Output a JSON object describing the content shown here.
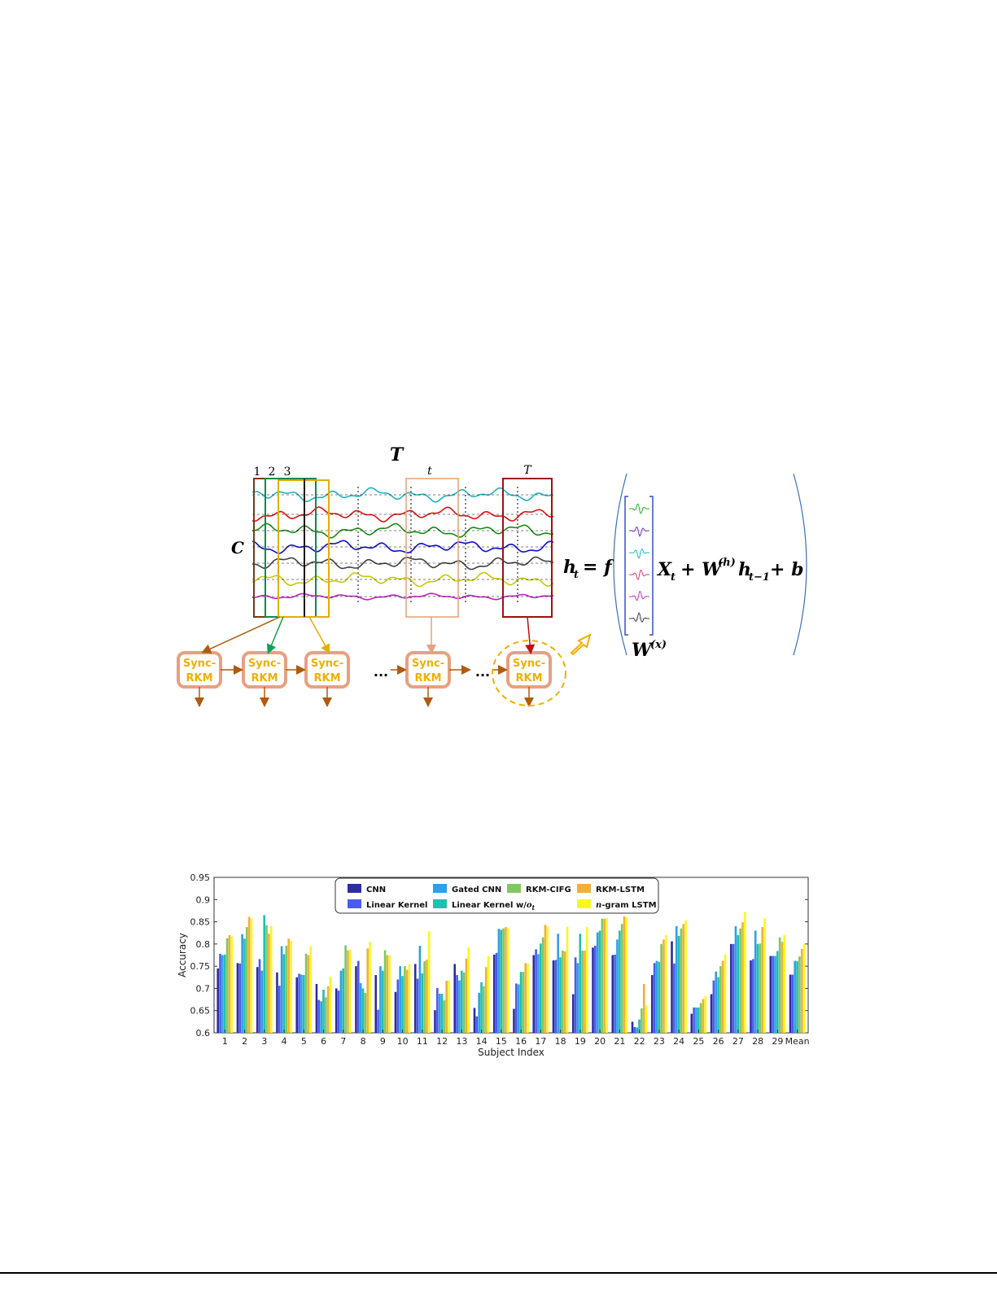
{
  "figure1": {
    "T_big": "T",
    "C_label": "C",
    "window_numbers": [
      "1",
      "2",
      "3"
    ],
    "t_label": "t",
    "T_label": "T",
    "sync_line1": "Sync-",
    "sync_line2": "RKM",
    "ellipsis": "...",
    "eq_ht": "h",
    "eq_ht_sub": "t",
    "eq_eq_f": "= f",
    "eq_xt": "X",
    "eq_xt_sub": "t",
    "eq_plus_w": "+ W",
    "eq_w_sup": "(h)",
    "eq_h": "h",
    "eq_h_sub": "t−1",
    "eq_plus_b": "+ b",
    "wx": "W",
    "wx_sup": "(x)",
    "signal_colors": [
      "#20b2c0",
      "#e01010",
      "#1a8a1a",
      "#1010c8",
      "#404040",
      "#c8c800",
      "#c020c0"
    ],
    "window_colors": [
      "#7a3a10",
      "#108a4a",
      "#e0b000"
    ],
    "sync_color": "#e8a080",
    "sync_text_color": "#f0b000"
  },
  "chart_data": {
    "type": "bar",
    "ylabel": "Accuracy",
    "xlabel": "Subject Index",
    "ylim": [
      0.6,
      0.95
    ],
    "yticks": [
      "0.6",
      "0.65",
      "0.7",
      "0.75",
      "0.8",
      "0.85",
      "0.9",
      "0.95"
    ],
    "categories": [
      "1",
      "2",
      "3",
      "4",
      "5",
      "6",
      "7",
      "8",
      "9",
      "10",
      "11",
      "12",
      "13",
      "14",
      "15",
      "16",
      "17",
      "18",
      "19",
      "20",
      "21",
      "22",
      "23",
      "24",
      "25",
      "26",
      "27",
      "28",
      "29",
      "Mean"
    ],
    "legend": {
      "placement": "top-center"
    },
    "series": [
      {
        "name": "CNN",
        "color": "#2e2e9e",
        "values": [
          0.745,
          0.757,
          0.748,
          0.736,
          0.725,
          0.71,
          0.7,
          0.75,
          0.73,
          0.692,
          0.755,
          0.651,
          0.755,
          0.656,
          0.776,
          0.654,
          0.775,
          0.763,
          0.687,
          0.792,
          0.775,
          0.625,
          0.73,
          0.806,
          0.643,
          0.687,
          0.8,
          0.763,
          0.773,
          0.731
        ]
      },
      {
        "name": "Linear Kernel",
        "color": "#4a5cf0",
        "values": [
          0.778,
          0.756,
          0.766,
          0.706,
          0.733,
          0.674,
          0.695,
          0.762,
          0.652,
          0.72,
          0.722,
          0.701,
          0.73,
          0.637,
          0.78,
          0.711,
          0.788,
          0.764,
          0.77,
          0.796,
          0.776,
          0.613,
          0.757,
          0.756,
          0.657,
          0.718,
          0.8,
          0.766,
          0.773,
          0.731
        ]
      },
      {
        "name": "Gated CNN",
        "color": "#2ea0e8",
        "values": [
          0.775,
          0.822,
          0.74,
          0.795,
          0.731,
          0.671,
          0.74,
          0.712,
          0.75,
          0.75,
          0.796,
          0.688,
          0.718,
          0.69,
          0.834,
          0.709,
          0.777,
          0.823,
          0.757,
          0.826,
          0.81,
          0.612,
          0.762,
          0.84,
          0.657,
          0.738,
          0.84,
          0.83,
          0.773,
          0.762
        ]
      },
      {
        "name": "Linear Kernel w/o_t",
        "color": "#20c0b0",
        "values": [
          0.776,
          0.812,
          0.865,
          0.777,
          0.73,
          0.697,
          0.745,
          0.7,
          0.74,
          0.728,
          0.734,
          0.688,
          0.74,
          0.714,
          0.832,
          0.737,
          0.801,
          0.77,
          0.823,
          0.83,
          0.83,
          0.63,
          0.76,
          0.818,
          0.657,
          0.725,
          0.82,
          0.8,
          0.784,
          0.761
        ]
      },
      {
        "name": "RKM-CIFG",
        "color": "#80c860",
        "values": [
          0.813,
          0.838,
          0.842,
          0.796,
          0.778,
          0.68,
          0.797,
          0.69,
          0.786,
          0.75,
          0.761,
          0.673,
          0.736,
          0.705,
          0.835,
          0.737,
          0.815,
          0.785,
          0.785,
          0.857,
          0.845,
          0.655,
          0.8,
          0.835,
          0.667,
          0.75,
          0.835,
          0.801,
          0.815,
          0.772
        ]
      },
      {
        "name": "RKM-LSTM",
        "color": "#f0b040",
        "values": [
          0.82,
          0.861,
          0.823,
          0.812,
          0.775,
          0.705,
          0.786,
          0.79,
          0.775,
          0.742,
          0.765,
          0.717,
          0.767,
          0.748,
          0.838,
          0.757,
          0.843,
          0.783,
          0.785,
          0.857,
          0.862,
          0.71,
          0.81,
          0.845,
          0.676,
          0.762,
          0.849,
          0.838,
          0.805,
          0.789
        ]
      },
      {
        "name": "n-gram LSTM",
        "color": "#f8f820",
        "values": [
          0.817,
          0.857,
          0.84,
          0.807,
          0.795,
          0.726,
          0.787,
          0.805,
          0.774,
          0.754,
          0.829,
          0.718,
          0.793,
          0.773,
          0.836,
          0.756,
          0.84,
          0.839,
          0.838,
          0.858,
          0.86,
          0.662,
          0.82,
          0.853,
          0.683,
          0.776,
          0.872,
          0.858,
          0.82,
          0.8
        ]
      }
    ]
  }
}
